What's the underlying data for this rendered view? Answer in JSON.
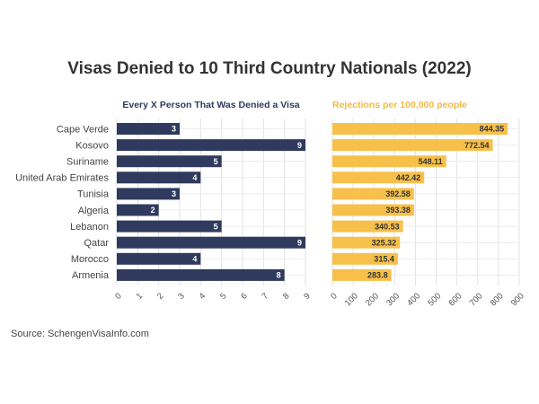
{
  "title": "Visas Denied to 10 Third Country Nationals (2022)",
  "source": "Source: SchengenVisaInfo.com",
  "colors": {
    "left": "#2f3a5e",
    "right": "#f7c04a"
  },
  "chart_data": [
    {
      "type": "bar",
      "orientation": "horizontal",
      "title": "Every X Person That Was Denied a Visa",
      "categories": [
        "Cape Verde",
        "Kosovo",
        "Suriname",
        "United Arab Emirates",
        "Tunisia",
        "Algeria",
        "Lebanon",
        "Qatar",
        "Morocco",
        "Armenia"
      ],
      "values": [
        3,
        9,
        5,
        4,
        3,
        2,
        5,
        9,
        4,
        8
      ],
      "xlim": [
        0,
        9
      ],
      "ticks": [
        0,
        1,
        2,
        3,
        4,
        5,
        6,
        7,
        8,
        9
      ],
      "grid": true
    },
    {
      "type": "bar",
      "orientation": "horizontal",
      "title": "Rejections per 100,000 people",
      "categories": [
        "Cape Verde",
        "Kosovo",
        "Suriname",
        "United Arab Emirates",
        "Tunisia",
        "Algeria",
        "Lebanon",
        "Qatar",
        "Morocco",
        "Armenia"
      ],
      "values": [
        844.35,
        772.54,
        548.11,
        442.42,
        392.58,
        393.38,
        340.53,
        325.32,
        315.4,
        283.8
      ],
      "value_labels": [
        "844.35",
        "772.54",
        "548.11",
        "442.42",
        "392.58",
        "393.38",
        "340.53",
        "325.32",
        "315.4",
        "283.8"
      ],
      "xlim": [
        0,
        900
      ],
      "ticks": [
        0,
        100,
        200,
        300,
        400,
        500,
        600,
        700,
        800,
        900
      ],
      "grid": true
    }
  ]
}
